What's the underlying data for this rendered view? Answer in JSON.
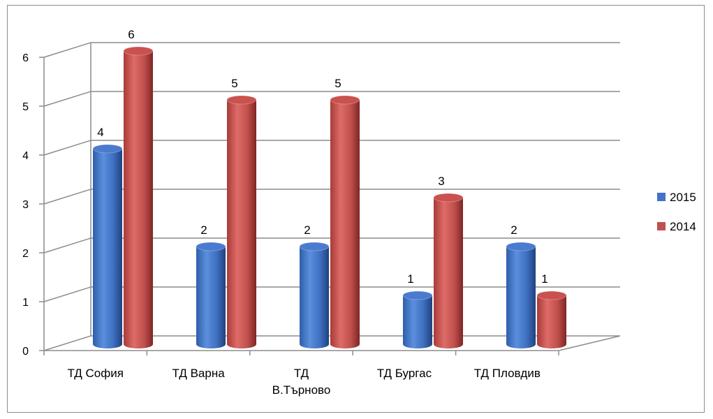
{
  "chart_data": {
    "type": "bar",
    "categories": [
      "ТД София",
      "ТД Варна",
      "ТД\nВ.Търново",
      "ТД Бургас",
      "ТД Пловдив"
    ],
    "series": [
      {
        "name": "2015",
        "values": [
          4,
          2,
          2,
          1,
          2
        ],
        "color": "#4472c4"
      },
      {
        "name": "2014",
        "values": [
          6,
          5,
          5,
          3,
          1
        ],
        "color": "#c0504d"
      }
    ],
    "ylim": [
      0,
      6
    ],
    "yticks": [
      0,
      1,
      2,
      3,
      4,
      5,
      6
    ],
    "grid": true,
    "legend_position": "right",
    "data_labels": true,
    "style": "3d-cylinder"
  }
}
